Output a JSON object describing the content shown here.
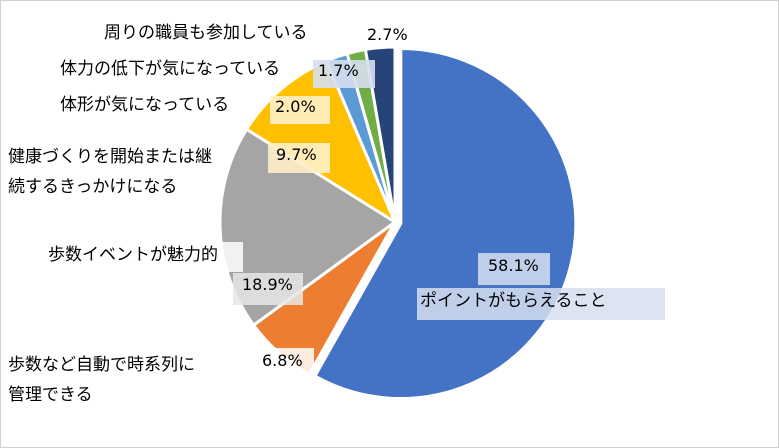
{
  "chart_data": {
    "type": "pie",
    "title": "",
    "slices": [
      {
        "label": "ポイントがもらえること",
        "value": 58.1,
        "value_label": "58.1%",
        "color": "#4472C4"
      },
      {
        "label_lines": [
          "歩数など自動で時系列に",
          "管理できる"
        ],
        "value": 6.8,
        "value_label": "6.8%",
        "color": "#ED7D31"
      },
      {
        "label": "歩数イベントが魅力的",
        "value": 18.9,
        "value_label": "18.9%",
        "color": "#A5A5A5"
      },
      {
        "label_lines": [
          "健康づくりを開始または継",
          "続するきっかけになる"
        ],
        "value": 9.7,
        "value_label": "9.7%",
        "color": "#FFC000"
      },
      {
        "label": "体形が気になっている",
        "value": 2.0,
        "value_label": "2.0%",
        "color": "#5B9BD5"
      },
      {
        "label": "体力の低下が気になっている",
        "value": 1.7,
        "value_label": "1.7%",
        "color": "#70AD47"
      },
      {
        "label": "周りの職員も参加している",
        "value": 2.7,
        "value_label": "2.7%",
        "color": "#264478"
      }
    ]
  }
}
